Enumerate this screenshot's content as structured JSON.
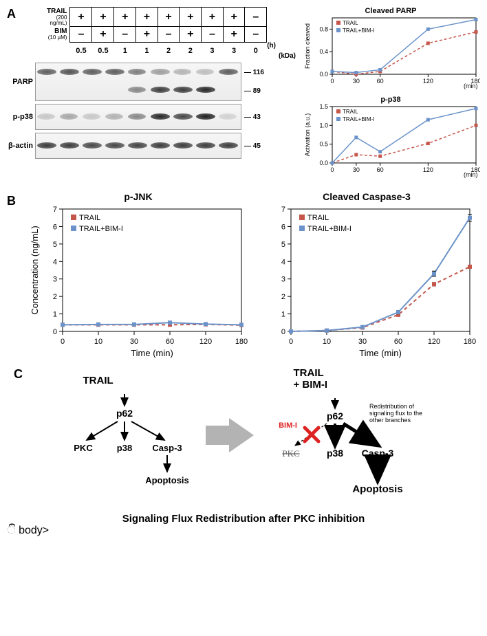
{
  "panelA": {
    "label": "A",
    "treatments": {
      "trail_label": "TRAIL",
      "trail_sub": "(200 ng/mL)",
      "bim_label": "BIM",
      "bim_sub": "(10 µM)",
      "trail_vals": [
        "+",
        "+",
        "+",
        "+",
        "+",
        "+",
        "+",
        "+",
        "–"
      ],
      "bim_vals": [
        "–",
        "+",
        "–",
        "+",
        "–",
        "+",
        "–",
        "+",
        "–"
      ],
      "hours": [
        "0.5",
        "0.5",
        "1",
        "1",
        "2",
        "2",
        "3",
        "3",
        "0"
      ],
      "hours_unit": "(h)",
      "kda_label": "(kDa)"
    },
    "blots": [
      {
        "label": "PARP",
        "tall": true,
        "kda": [
          "116",
          "89"
        ],
        "bands": [
          {
            "l": 2,
            "t": 8,
            "w": 28,
            "o": 0.7
          },
          {
            "l": 35,
            "t": 8,
            "w": 28,
            "o": 0.75
          },
          {
            "l": 68,
            "t": 8,
            "w": 28,
            "o": 0.7
          },
          {
            "l": 101,
            "t": 8,
            "w": 28,
            "o": 0.7
          },
          {
            "l": 134,
            "t": 8,
            "w": 26,
            "o": 0.55
          },
          {
            "l": 167,
            "t": 8,
            "w": 28,
            "o": 0.4
          },
          {
            "l": 200,
            "t": 8,
            "w": 26,
            "o": 0.3
          },
          {
            "l": 233,
            "t": 8,
            "w": 26,
            "o": 0.25
          },
          {
            "l": 266,
            "t": 8,
            "w": 28,
            "o": 0.7
          },
          {
            "l": 134,
            "t": 34,
            "w": 26,
            "o": 0.5
          },
          {
            "l": 167,
            "t": 34,
            "w": 28,
            "o": 0.85
          },
          {
            "l": 200,
            "t": 34,
            "w": 28,
            "o": 0.85
          },
          {
            "l": 233,
            "t": 34,
            "w": 28,
            "o": 0.95
          }
        ]
      },
      {
        "label": "p-p38",
        "tall": false,
        "kda": [
          "43"
        ],
        "bands": [
          {
            "l": 2,
            "t": 13,
            "w": 26,
            "o": 0.2
          },
          {
            "l": 35,
            "t": 13,
            "w": 26,
            "o": 0.35
          },
          {
            "l": 68,
            "t": 13,
            "w": 26,
            "o": 0.2
          },
          {
            "l": 101,
            "t": 13,
            "w": 26,
            "o": 0.3
          },
          {
            "l": 134,
            "t": 13,
            "w": 26,
            "o": 0.5
          },
          {
            "l": 167,
            "t": 13,
            "w": 28,
            "o": 0.95
          },
          {
            "l": 200,
            "t": 13,
            "w": 28,
            "o": 0.8
          },
          {
            "l": 233,
            "t": 13,
            "w": 28,
            "o": 0.98
          },
          {
            "l": 266,
            "t": 13,
            "w": 26,
            "o": 0.15
          }
        ]
      },
      {
        "label": "β-actin",
        "tall": false,
        "kda": [
          "45"
        ],
        "bands": [
          {
            "l": 2,
            "t": 13,
            "w": 28,
            "o": 0.85
          },
          {
            "l": 35,
            "t": 13,
            "w": 28,
            "o": 0.85
          },
          {
            "l": 68,
            "t": 13,
            "w": 28,
            "o": 0.8
          },
          {
            "l": 101,
            "t": 13,
            "w": 28,
            "o": 0.8
          },
          {
            "l": 134,
            "t": 13,
            "w": 28,
            "o": 0.82
          },
          {
            "l": 167,
            "t": 13,
            "w": 28,
            "o": 0.85
          },
          {
            "l": 200,
            "t": 13,
            "w": 28,
            "o": 0.85
          },
          {
            "l": 233,
            "t": 13,
            "w": 28,
            "o": 0.85
          },
          {
            "l": 266,
            "t": 13,
            "w": 28,
            "o": 0.85
          }
        ]
      }
    ],
    "mini_charts": [
      {
        "title": "Cleaved PARP",
        "ylabel": "Fraction cleaved",
        "x": [
          0,
          30,
          60,
          120,
          180
        ],
        "ylim": [
          0,
          1
        ],
        "yticks": [
          0.0,
          0.4,
          0.8
        ],
        "series": [
          {
            "name": "TRAIL",
            "color": "#c4564a",
            "dash": true,
            "marker": "square",
            "y": [
              0.05,
              0.0,
              0.05,
              0.55,
              0.75
            ]
          },
          {
            "name": "TRAIL+BIM-I",
            "color": "#6b93c9",
            "dash": false,
            "marker": "square",
            "y": [
              0.05,
              0.03,
              0.08,
              0.8,
              0.97
            ]
          }
        ]
      },
      {
        "title": "p-p38",
        "ylabel": "Activation (a.u.)",
        "x": [
          0,
          30,
          60,
          120,
          180
        ],
        "ylim": [
          0,
          1.5
        ],
        "yticks": [
          0.0,
          0.5,
          1.0,
          1.5
        ],
        "series": [
          {
            "name": "TRAIL",
            "color": "#c4564a",
            "dash": true,
            "marker": "square",
            "y": [
              0.0,
              0.22,
              0.18,
              0.52,
              1.0
            ]
          },
          {
            "name": "TRAIL+BIM-I",
            "color": "#6b93c9",
            "dash": false,
            "marker": "square",
            "y": [
              0.0,
              0.68,
              0.3,
              1.15,
              1.45
            ]
          }
        ]
      }
    ],
    "mini_xticks": [
      0,
      30,
      60,
      120,
      180
    ],
    "mini_xlabel": "(min)"
  },
  "panelB": {
    "label": "B",
    "charts": [
      {
        "title": "p-JNK",
        "ylabel": "Concentration (ng/mL)",
        "xlabel": "Time (min)",
        "x": [
          0,
          10,
          30,
          60,
          120,
          180
        ],
        "xticks": [
          0,
          10,
          30,
          60,
          120,
          180
        ],
        "ylim": [
          0,
          7
        ],
        "yticks": [
          0,
          1,
          2,
          3,
          4,
          5,
          6,
          7
        ],
        "series": [
          {
            "name": "TRAIL",
            "color": "#c4564a",
            "dash": true,
            "y": [
              0.38,
              0.38,
              0.38,
              0.38,
              0.4,
              0.36
            ],
            "err": [
              0.05,
              0.05,
              0.05,
              0.05,
              0.05,
              0.05
            ]
          },
          {
            "name": "TRAIL+BIM-I",
            "color": "#6b93c9",
            "dash": false,
            "y": [
              0.38,
              0.4,
              0.4,
              0.5,
              0.42,
              0.38
            ],
            "err": [
              0.05,
              0.05,
              0.05,
              0.06,
              0.05,
              0.05
            ]
          }
        ],
        "legend": [
          "TRAIL",
          "TRAIL+BIM-I"
        ]
      },
      {
        "title": "Cleaved Caspase-3",
        "ylabel": "",
        "xlabel": "Time (min)",
        "x": [
          0,
          10,
          30,
          60,
          120,
          180
        ],
        "xticks": [
          0,
          10,
          30,
          60,
          120,
          180
        ],
        "ylim": [
          0,
          7
        ],
        "yticks": [
          0,
          1,
          2,
          3,
          4,
          5,
          6,
          7
        ],
        "series": [
          {
            "name": "TRAIL",
            "color": "#c4564a",
            "dash": true,
            "y": [
              0.0,
              0.05,
              0.22,
              0.95,
              2.7,
              3.7
            ],
            "err": [
              0.03,
              0.03,
              0.05,
              0.08,
              0.1,
              0.08
            ]
          },
          {
            "name": "TRAIL+BIM-I",
            "color": "#6b93c9",
            "dash": false,
            "y": [
              0.0,
              0.05,
              0.25,
              1.1,
              3.3,
              6.5
            ],
            "err": [
              0.03,
              0.03,
              0.05,
              0.1,
              0.15,
              0.2
            ]
          }
        ],
        "legend": [
          "TRAIL",
          "TRAIL+BIM-I"
        ]
      }
    ],
    "legend_colors": {
      "TRAIL": "#c4564a",
      "TRAIL+BIM-I": "#6b93c9"
    }
  },
  "panelC": {
    "label": "C",
    "left_title": "TRAIL",
    "right_title": "TRAIL\n+ BIM-I",
    "nodes": {
      "p62": "p62",
      "pkc": "PKC",
      "p38": "p38",
      "casp3": "Casp-3",
      "apop": "Apoptosis"
    },
    "bim_text": "BIM-I",
    "annot": "Redistribution of signaling flux to the other branches",
    "caption": "Signaling Flux Redistribution after PKC inhibition"
  }
}
